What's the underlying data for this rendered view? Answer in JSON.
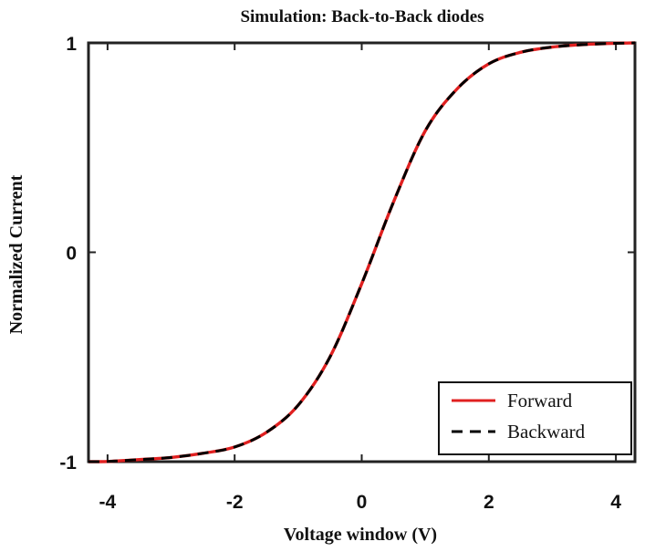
{
  "chart_data": {
    "type": "line",
    "title": "Simulation: Back-to-Back diodes",
    "xlabel": "Voltage window (V)",
    "ylabel": "Normalized Current",
    "xlim": [
      -4.3,
      4.3
    ],
    "ylim": [
      -1,
      1
    ],
    "xticks": [
      -4,
      -2,
      0,
      2,
      4
    ],
    "xtick_labels": [
      "-4",
      "-2",
      "0",
      "2",
      "4"
    ],
    "yticks": [
      -1,
      0,
      1
    ],
    "ytick_labels": [
      "-1",
      "0",
      "1"
    ],
    "grid": false,
    "legend": {
      "placement": "bottom-right",
      "entries": [
        "Forward",
        "Backward"
      ]
    },
    "series": [
      {
        "name": "Forward",
        "color": "#e02020",
        "line_style": "solid",
        "x": [
          -4.3,
          -4.0,
          -3.5,
          -3.0,
          -2.5,
          -2.0,
          -1.5,
          -1.0,
          -0.5,
          0.0,
          0.5,
          1.0,
          1.5,
          2.0,
          2.5,
          3.0,
          3.5,
          4.0,
          4.3
        ],
        "y": [
          -1.0,
          -0.999,
          -0.99,
          -0.98,
          -0.96,
          -0.93,
          -0.86,
          -0.73,
          -0.5,
          -0.15,
          0.24,
          0.58,
          0.78,
          0.9,
          0.955,
          0.98,
          0.992,
          0.998,
          1.0
        ]
      },
      {
        "name": "Backward",
        "color": "#000000",
        "line_style": "dashed",
        "x": [
          -4.3,
          -4.0,
          -3.5,
          -3.0,
          -2.5,
          -2.0,
          -1.5,
          -1.0,
          -0.5,
          0.0,
          0.5,
          1.0,
          1.5,
          2.0,
          2.5,
          3.0,
          3.5,
          4.0,
          4.3
        ],
        "y": [
          -1.0,
          -0.999,
          -0.99,
          -0.98,
          -0.96,
          -0.93,
          -0.86,
          -0.73,
          -0.5,
          -0.15,
          0.24,
          0.58,
          0.78,
          0.9,
          0.955,
          0.98,
          0.992,
          0.998,
          1.0
        ]
      }
    ]
  }
}
